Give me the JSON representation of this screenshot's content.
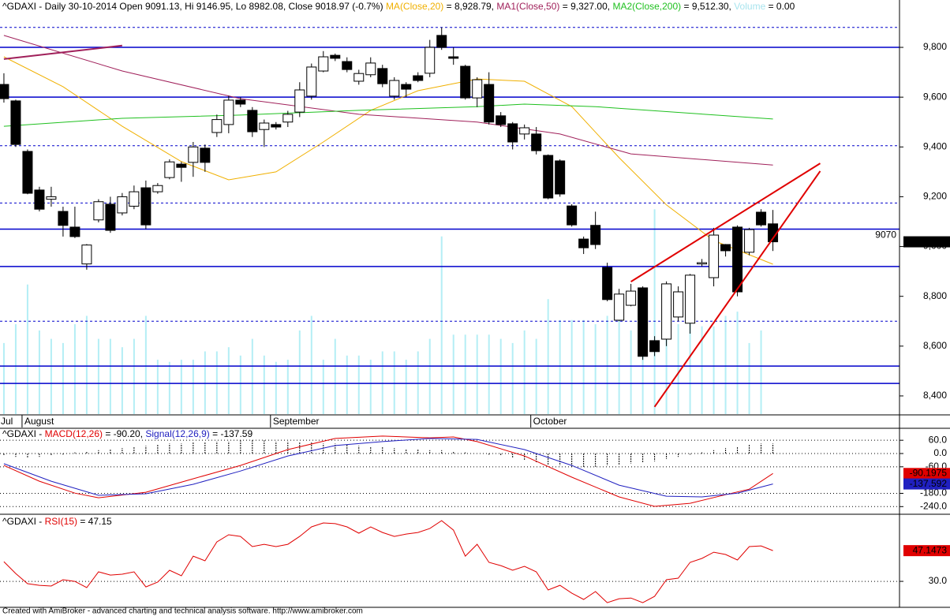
{
  "chart_data": [
    {
      "type": "candlestick",
      "title_parts": [
        {
          "text": "^GDAXI - Daily 30-10-2014 Open 9091.13, Hi 9146.95, Lo 8982.08, Close 9018.97 (-0.7%) ",
          "color": "#000000"
        },
        {
          "text": "MA(Close,20)",
          "color": "#f0b000"
        },
        {
          "text": " = 8,928.79, ",
          "color": "#000000"
        },
        {
          "text": "MA1(Close,50)",
          "color": "#a0205a"
        },
        {
          "text": " = 9,327.00, ",
          "color": "#000000"
        },
        {
          "text": "MA2(Close,200)",
          "color": "#1fc01f"
        },
        {
          "text": " = 9,512.30, ",
          "color": "#000000"
        },
        {
          "text": "Volume",
          "color": "#a8e4ee"
        },
        {
          "text": " = 0.00",
          "color": "#000000"
        }
      ],
      "categories": [
        "Jul",
        null,
        "August",
        null,
        null,
        null,
        null,
        null,
        null,
        null,
        null,
        null,
        null,
        null,
        null,
        null,
        null,
        null,
        null,
        null,
        null,
        null,
        null,
        "September",
        null,
        null,
        null,
        null,
        null,
        null,
        null,
        null,
        null,
        null,
        null,
        null,
        null,
        null,
        null,
        null,
        null,
        null,
        null,
        null,
        null,
        "October",
        null,
        null,
        null,
        null,
        null,
        null,
        null,
        null,
        null,
        null,
        null,
        null,
        null,
        null,
        null,
        null,
        null,
        null,
        null,
        null
      ],
      "open": [
        9651,
        9585,
        9382,
        9227,
        9190,
        9141,
        9078,
        8930,
        9107,
        9170,
        9135,
        9162,
        9236,
        9220,
        9277,
        9331,
        9338,
        9395,
        9458,
        9490,
        9588,
        9547,
        9470,
        9490,
        9500,
        9540,
        9604,
        9705,
        9768,
        9743,
        9664,
        9690,
        9715,
        9604,
        9651,
        9686,
        9696,
        9848,
        9762,
        9724,
        9597,
        9651,
        9525,
        9493,
        9452,
        9452,
        9366,
        9344,
        9163,
        9030,
        9085,
        8916,
        8704,
        8764,
        8834,
        8622,
        8628,
        8717,
        8692,
        8930,
        8875,
        9008,
        9078,
        8977,
        9138,
        9091.13
      ],
      "high": [
        9696,
        9590,
        9390,
        9240,
        9240,
        9160,
        9160,
        9010,
        9190,
        9200,
        9215,
        9245,
        9265,
        9255,
        9350,
        9340,
        9420,
        9410,
        9530,
        9605,
        9600,
        9560,
        9510,
        9500,
        9545,
        9660,
        9735,
        9785,
        9775,
        9760,
        9710,
        9760,
        9730,
        9680,
        9660,
        9700,
        9830,
        9880,
        9800,
        9730,
        9680,
        9700,
        9540,
        9500,
        9490,
        9480,
        9370,
        9350,
        9170,
        9040,
        9140,
        8935,
        8830,
        8850,
        8840,
        8640,
        8860,
        8840,
        8890,
        8950,
        9075,
        9010,
        9085,
        9075,
        9150,
        9146.95
      ],
      "low": [
        9578,
        9400,
        9210,
        9141,
        9160,
        9040,
        9034,
        8907,
        9097,
        9055,
        9125,
        9150,
        9070,
        9212,
        9270,
        9260,
        9280,
        9300,
        9440,
        9455,
        9560,
        9440,
        9400,
        9470,
        9480,
        9520,
        9590,
        9700,
        9745,
        9700,
        9650,
        9680,
        9640,
        9590,
        9600,
        9660,
        9680,
        9790,
        9730,
        9590,
        9560,
        9490,
        9480,
        9390,
        9430,
        9370,
        9190,
        9200,
        9080,
        8970,
        8990,
        8780,
        8700,
        8760,
        8545,
        8560,
        8600,
        8700,
        8650,
        8920,
        8840,
        8960,
        8800,
        8965,
        9080,
        8982.08
      ],
      "close": [
        9594,
        9410,
        9214,
        9150,
        9200,
        9085,
        9040,
        9006,
        9180,
        9065,
        9200,
        9220,
        9087,
        9245,
        9340,
        9318,
        9400,
        9338,
        9510,
        9588,
        9572,
        9461,
        9496,
        9480,
        9531,
        9629,
        9721,
        9762,
        9756,
        9711,
        9695,
        9737,
        9654,
        9667,
        9632,
        9667,
        9800,
        9800,
        9756,
        9597,
        9670,
        9500,
        9490,
        9420,
        9477,
        9385,
        9195,
        9211,
        9087,
        8995,
        9008,
        8787,
        8809,
        8821,
        8559,
        8578,
        8850,
        8818,
        8885,
        8935,
        9046,
        8983,
        8818,
        9068,
        9087,
        9018.97
      ],
      "up_color": "#ffffff",
      "down_color": "#000000",
      "volume": {
        "color": "#b4eef5",
        "ylim": [
          0,
          100
        ],
        "values": [
          34,
          43,
          62,
          40,
          36,
          34,
          43,
          47,
          36,
          36,
          32,
          36,
          47,
          26,
          25,
          26,
          26,
          30,
          30,
          32,
          28,
          36,
          28,
          25,
          26,
          40,
          47,
          26,
          36,
          28,
          28,
          26,
          30,
          30,
          26,
          30,
          36,
          85,
          38,
          38,
          38,
          38,
          36,
          34,
          40,
          36,
          55,
          45,
          45,
          45,
          43,
          47,
          47,
          40,
          40,
          98,
          47,
          43,
          51,
          42,
          42,
          47,
          49,
          34,
          40,
          null
        ]
      },
      "lines": [
        {
          "color": "#f0b000",
          "x": [
            0,
            5,
            10,
            15,
            19,
            23,
            27,
            31,
            35,
            40,
            44,
            48,
            52,
            56,
            60,
            65
          ],
          "values": [
            9762,
            9642,
            9483,
            9341,
            9268,
            9300,
            9420,
            9547,
            9626,
            9673,
            9664,
            9562,
            9357,
            9167,
            9024,
            8928.79
          ]
        },
        {
          "color": "#a0205a",
          "x": [
            0,
            10,
            20,
            30,
            40,
            47,
            53,
            65
          ],
          "values": [
            9848,
            9705,
            9594,
            9531,
            9500,
            9452,
            9372,
            9327
          ]
        },
        {
          "color": "#1fc01f",
          "x": [
            0,
            10,
            20,
            30,
            40,
            44,
            50,
            65
          ],
          "values": [
            9483,
            9515,
            9528,
            9547,
            9562,
            9572,
            9562,
            9512.3
          ]
        }
      ],
      "trendlines": [
        {
          "color": "#e00000",
          "x": [
            53,
            69
          ],
          "values": [
            8859,
            9334
          ]
        },
        {
          "color": "#e00000",
          "x": [
            55,
            69
          ],
          "values": [
            8356,
            9303
          ]
        },
        {
          "color": "#a0205a",
          "x": [
            0,
            10
          ],
          "values": [
            9753,
            9807
          ]
        }
      ],
      "hline_color": "#0000cc",
      "hlines": [
        {
          "value": 9880,
          "style": "dotted"
        },
        {
          "value": 9800,
          "style": "solid"
        },
        {
          "value": 9600,
          "style": "solid"
        },
        {
          "value": 9405,
          "style": "dotted"
        },
        {
          "value": 9175,
          "style": "dotted"
        },
        {
          "value": 9070,
          "style": "solid",
          "label": "9070"
        },
        {
          "value": 8920,
          "style": "solid"
        },
        {
          "value": 8700,
          "style": "dotted"
        },
        {
          "value": 8520,
          "style": "solid"
        },
        {
          "value": 8450,
          "style": "solid"
        }
      ],
      "last_label": "9,018.97",
      "last_label_color": "#000000",
      "last_label_text_color": "#ffffff",
      "xlim": [
        -0.33,
        75.7
      ],
      "ylim": [
        8327,
        9911
      ],
      "yticks": [
        {
          "value": 8400,
          "label": "8,400"
        },
        {
          "value": 8600,
          "label": "8,600"
        },
        {
          "value": 8800,
          "label": "8,800"
        },
        {
          "value": 9000,
          "label": "9,000"
        },
        {
          "value": 9200,
          "label": "9,200"
        },
        {
          "value": 9400,
          "label": "9,400"
        },
        {
          "value": 9600,
          "label": "9,600"
        },
        {
          "value": 9800,
          "label": "9,800"
        }
      ],
      "grid": false
    },
    {
      "type": "macd",
      "title_parts": [
        {
          "text": "^GDAXI - ",
          "color": "#000000"
        },
        {
          "text": "MACD(12,26)",
          "color": "#e00000"
        },
        {
          "text": " = -90.20, ",
          "color": "#000000"
        },
        {
          "text": "Signal(12,26,9)",
          "color": "#2020c0"
        },
        {
          "text": " = -137.59",
          "color": "#000000"
        }
      ],
      "series": [
        {
          "color": "#e00000",
          "x": [
            0,
            3,
            6,
            8,
            12,
            16,
            20,
            24,
            28,
            32,
            36,
            38,
            40,
            44,
            48,
            52,
            55,
            58,
            61,
            63,
            65
          ],
          "values": [
            -54,
            -125,
            -179,
            -200,
            -175,
            -114,
            -54,
            18,
            68,
            79,
            71,
            75,
            54,
            -11,
            -107,
            -196,
            -239,
            -225,
            -186,
            -161,
            -90.1975
          ],
          "value_label": "-90.1975",
          "label_text_color": "#000000"
        },
        {
          "color": "#2020c0",
          "x": [
            0,
            4,
            8,
            12,
            16,
            20,
            24,
            28,
            32,
            36,
            40,
            44,
            48,
            52,
            56,
            59,
            62,
            65
          ],
          "values": [
            -46,
            -125,
            -189,
            -182,
            -139,
            -79,
            -11,
            36,
            54,
            68,
            64,
            18,
            -54,
            -143,
            -193,
            -196,
            -179,
            -137.592
          ],
          "value_label": "-137.592",
          "label_text_color": "#ffffff"
        }
      ],
      "histogram": {
        "color": "#000000",
        "values": [
          -10,
          -15,
          -20,
          -15,
          -10,
          -5,
          5,
          10,
          15,
          20,
          25,
          30,
          35,
          40,
          45,
          45,
          50,
          50,
          55,
          55,
          60,
          60,
          60,
          55,
          55,
          50,
          50,
          45,
          45,
          40,
          35,
          30,
          30,
          25,
          20,
          20,
          15,
          15,
          10,
          5,
          0,
          -5,
          -10,
          -20,
          -30,
          -40,
          -50,
          -55,
          -60,
          -60,
          -60,
          -55,
          -50,
          -45,
          -40,
          -35,
          -25,
          -15,
          -5,
          5,
          15,
          25,
          30,
          40,
          45,
          45
        ]
      },
      "xlim": [
        -0.33,
        75.7
      ],
      "ylim": [
        -271,
        107
      ],
      "yticks": [
        {
          "value": 60,
          "label": "60.0"
        },
        {
          "value": 0,
          "label": "0.0"
        },
        {
          "value": -60,
          "label": "-60.0"
        },
        {
          "value": -180,
          "label": "-180.0"
        },
        {
          "value": -240,
          "label": "-240.0"
        }
      ],
      "grid": true
    },
    {
      "type": "line",
      "title_parts": [
        {
          "text": "^GDAXI - ",
          "color": "#000000"
        },
        {
          "text": "RSI(15)",
          "color": "#e00000"
        },
        {
          "text": " = 47.15",
          "color": "#000000"
        }
      ],
      "series": [
        {
          "color": "#e00000",
          "values": [
            41.0,
            34.4,
            28.7,
            27.8,
            27.4,
            30.9,
            30.0,
            26.5,
            35.3,
            33.5,
            34.0,
            35.3,
            26.9,
            29.6,
            36.2,
            33.1,
            44.1,
            41.5,
            52.0,
            56.0,
            55.1,
            49.4,
            50.7,
            49.4,
            50.7,
            55.1,
            60.4,
            62.6,
            62.2,
            60.4,
            56.9,
            60.4,
            57.3,
            55.1,
            56.4,
            57.3,
            59.5,
            63.9,
            58.6,
            44.1,
            50.7,
            40.6,
            38.8,
            36.2,
            38.4,
            35.3,
            25.2,
            27.8,
            23.4,
            19.9,
            24.3,
            18.1,
            20.3,
            20.7,
            18.1,
            21.6,
            30.9,
            31.8,
            40.6,
            42.8,
            46.3,
            45.0,
            41.9,
            49.4,
            49.8,
            47.1473
          ],
          "value_label": "47.1473",
          "label_text_color": "#000000"
        }
      ],
      "xlim": [
        -0.33,
        75.7
      ],
      "ylim": [
        15.5,
        65.7
      ],
      "yticks": [
        {
          "value": 30,
          "label": "30.0"
        }
      ],
      "grid": true
    }
  ],
  "footer": "Created with AmiBroker - advanced charting and technical analysis software. http://www.amibroker.com"
}
